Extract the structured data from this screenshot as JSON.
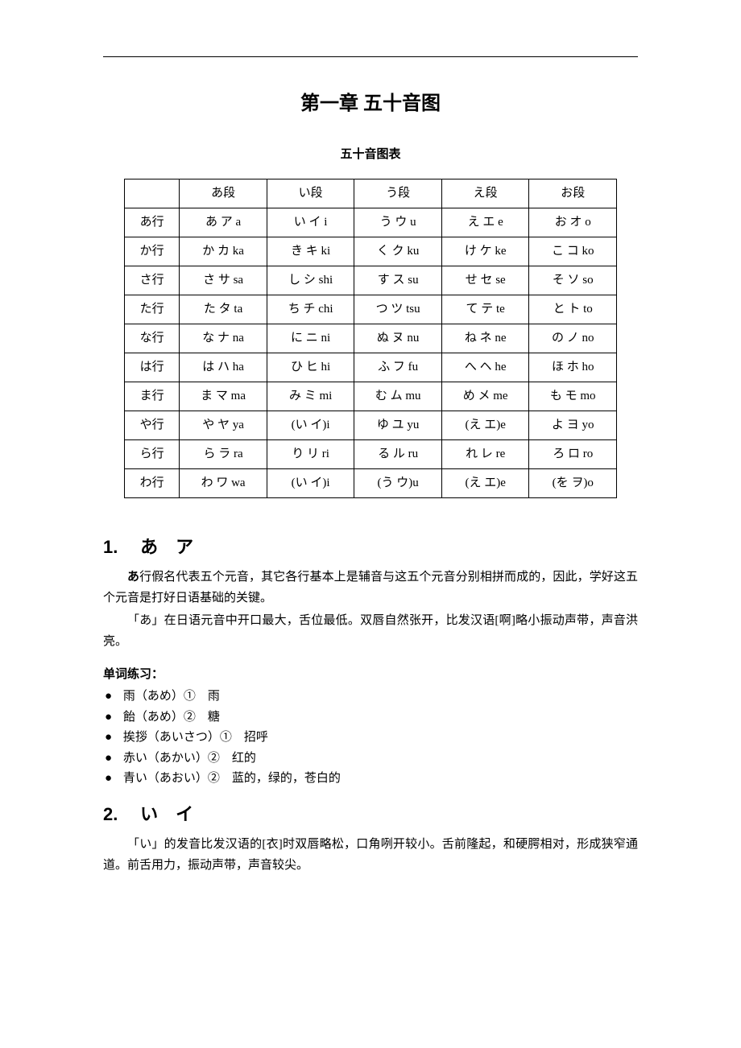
{
  "chapter_title": "第一章 五十音图",
  "table_title": "五十音图表",
  "table": {
    "cols_header": [
      "",
      "あ段",
      "い段",
      "う段",
      "え段",
      "お段"
    ],
    "rows": [
      [
        "あ行",
        "あ ア a",
        "い イ i",
        "う ウ u",
        "え エ e",
        "お オ o"
      ],
      [
        "か行",
        "か カ ka",
        "き キ ki",
        "く ク ku",
        "け ケ ke",
        "こ コ ko"
      ],
      [
        "さ行",
        "さ サ sa",
        "し シ shi",
        "す ス su",
        "せ セ se",
        "そ ソ so"
      ],
      [
        "た行",
        "た タ ta",
        "ち チ chi",
        "つ ツ tsu",
        "て テ te",
        "と ト to"
      ],
      [
        "な行",
        "な ナ na",
        "に ニ ni",
        "ぬ ヌ nu",
        "ね ネ ne",
        "の ノ no"
      ],
      [
        "は行",
        "は ハ ha",
        "ひ ヒ hi",
        "ふ フ fu",
        "へ ヘ he",
        "ほ ホ ho"
      ],
      [
        "ま行",
        "ま マ ma",
        "み ミ mi",
        "む ム mu",
        "め メ me",
        "も モ mo"
      ],
      [
        "や行",
        "や ヤ ya",
        "(い イ)i",
        "ゆ ユ yu",
        "(え エ)e",
        "よ ヨ yo"
      ],
      [
        "ら行",
        "ら ラ ra",
        "り リ ri",
        "る ル ru",
        "れ レ re",
        "ろ ロ ro"
      ],
      [
        "わ行",
        "わ ワ wa",
        "(い イ)i",
        "(う ウ)u",
        "(え エ)e",
        "(を ヲ)o"
      ]
    ]
  },
  "sections": [
    {
      "num": "1.",
      "kana": "あ　ア",
      "paras": [
        "あ行假名代表五个元音，其它各行基本上是辅音与这五个元音分别相拼而成的，因此，学好这五个元音是打好日语基础的关键。",
        "「あ」在日语元音中开口最大，舌位最低。双唇自然张开，比发汉语[啊]略小振动声带，声音洪亮。"
      ],
      "bold_lead": "あ",
      "practice_label": "单词练习：",
      "practice": [
        "雨（あめ）①　雨",
        "飴（あめ）②　糖",
        "挨拶（あいさつ）①　招呼",
        "赤い（あかい）②　红的",
        "青い（あおい）②　蓝的，绿的，苍白的"
      ]
    },
    {
      "num": "2.",
      "kana": "い　イ",
      "paras": [
        "「い」的发音比发汉语的[衣]时双唇略松，口角咧开较小。舌前隆起，和硬腭相对，形成狭窄通道。前舌用力，振动声带，声音较尖。"
      ]
    }
  ]
}
